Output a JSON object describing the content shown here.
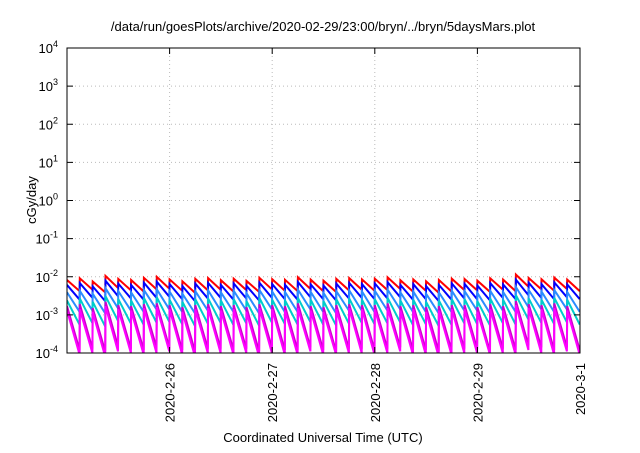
{
  "chart_data": {
    "type": "line",
    "title": "/data/run/goesPlots/archive/2020-02-29/23:00/bryn/../bryn/5daysMars.plot",
    "xlabel": "Coordinated Universal Time (UTC)",
    "ylabel": "cGy/day",
    "yscale": "log",
    "ylim": [
      0.0001,
      10000
    ],
    "xlim": [
      "2020-02-25T00:00",
      "2020-03-01T00:00"
    ],
    "grid": true,
    "y_ticks": [
      {
        "base": "10",
        "exp": "-4",
        "value": 0.0001
      },
      {
        "base": "10",
        "exp": "-3",
        "value": 0.001
      },
      {
        "base": "10",
        "exp": "-2",
        "value": 0.01
      },
      {
        "base": "10",
        "exp": "-1",
        "value": 0.1
      },
      {
        "base": "10",
        "exp": "0",
        "value": 1
      },
      {
        "base": "10",
        "exp": "1",
        "value": 10
      },
      {
        "base": "10",
        "exp": "2",
        "value": 100
      },
      {
        "base": "10",
        "exp": "3",
        "value": 1000
      },
      {
        "base": "10",
        "exp": "4",
        "value": 10000
      }
    ],
    "x_ticks": [
      {
        "label": "2020-2-26",
        "value": "2020-02-26T00:00"
      },
      {
        "label": "2020-2-27",
        "value": "2020-02-27T00:00"
      },
      {
        "label": "2020-2-28",
        "value": "2020-02-28T00:00"
      },
      {
        "label": "2020-2-29",
        "value": "2020-02-29T00:00"
      },
      {
        "label": "2020-3-1",
        "value": "2020-03-01T00:00"
      }
    ],
    "sawtooth_period_hours": 3,
    "series": [
      {
        "color": "#ff0000",
        "peaks": [
          0.0082,
          0.0091,
          0.0075,
          0.0105,
          0.0088,
          0.0082,
          0.0094,
          0.0099,
          0.0085,
          0.0076,
          0.0088,
          0.0092,
          0.0081,
          0.0089,
          0.0078,
          0.0094,
          0.0086,
          0.0083,
          0.0097,
          0.0084,
          0.0079,
          0.0088,
          0.0092,
          0.0085,
          0.0089,
          0.0096,
          0.0081,
          0.0085,
          0.0076,
          0.0082,
          0.0089,
          0.0087,
          0.0079,
          0.0091,
          0.0084,
          0.0114,
          0.0093,
          0.0086,
          0.0095,
          0.0084
        ],
        "troughs": [
          0.0042,
          0.0046,
          0.0039,
          0.0051,
          0.0044,
          0.0041,
          0.0047,
          0.0049,
          0.0043,
          0.0038,
          0.0044,
          0.0046,
          0.0041,
          0.0045,
          0.004,
          0.0047,
          0.0043,
          0.0042,
          0.0048,
          0.0042,
          0.004,
          0.0044,
          0.0046,
          0.0043,
          0.0045,
          0.0048,
          0.0041,
          0.0043,
          0.0038,
          0.0041,
          0.0045,
          0.0044,
          0.004,
          0.0046,
          0.0042,
          0.0055,
          0.0047,
          0.0043,
          0.0048,
          0.0042
        ]
      },
      {
        "color": "#0000ff",
        "peaks": [
          0.0061,
          0.0068,
          0.0056,
          0.0079,
          0.0066,
          0.0061,
          0.007,
          0.0074,
          0.0064,
          0.0057,
          0.0066,
          0.0069,
          0.0061,
          0.0067,
          0.0058,
          0.007,
          0.0064,
          0.0062,
          0.0073,
          0.0063,
          0.0059,
          0.0066,
          0.0069,
          0.0064,
          0.0067,
          0.0072,
          0.0061,
          0.0064,
          0.0057,
          0.0061,
          0.0067,
          0.0065,
          0.0059,
          0.0068,
          0.0063,
          0.0084,
          0.007,
          0.0064,
          0.0071,
          0.0063
        ],
        "troughs": [
          0.0025,
          0.0028,
          0.0023,
          0.0031,
          0.0027,
          0.0025,
          0.0028,
          0.003,
          0.0026,
          0.0023,
          0.0027,
          0.0028,
          0.0025,
          0.0027,
          0.0024,
          0.0028,
          0.0026,
          0.0025,
          0.0029,
          0.0026,
          0.0024,
          0.0027,
          0.0028,
          0.0026,
          0.0027,
          0.0029,
          0.0025,
          0.0026,
          0.0023,
          0.0025,
          0.0027,
          0.0026,
          0.0024,
          0.0028,
          0.0026,
          0.0033,
          0.0028,
          0.0026,
          0.0029,
          0.0026
        ]
      },
      {
        "color": "#2b8cff",
        "peaks": [
          0.0039,
          0.0043,
          0.0036,
          0.005,
          0.0042,
          0.0039,
          0.0045,
          0.0047,
          0.0041,
          0.0036,
          0.0042,
          0.0044,
          0.0039,
          0.0043,
          0.0037,
          0.0045,
          0.0041,
          0.004,
          0.0046,
          0.004,
          0.0038,
          0.0042,
          0.0044,
          0.0041,
          0.0043,
          0.0046,
          0.0039,
          0.0041,
          0.0036,
          0.0039,
          0.0043,
          0.0042,
          0.0038,
          0.0043,
          0.004,
          0.0054,
          0.0045,
          0.0041,
          0.0045,
          0.004
        ],
        "troughs": [
          0.0012,
          0.0013,
          0.0011,
          0.0015,
          0.0013,
          0.0012,
          0.0014,
          0.0014,
          0.0012,
          0.0011,
          0.0013,
          0.0013,
          0.0012,
          0.0013,
          0.0011,
          0.0014,
          0.0012,
          0.0012,
          0.0014,
          0.0012,
          0.0011,
          0.0013,
          0.0013,
          0.0012,
          0.0013,
          0.0014,
          0.0012,
          0.0012,
          0.0011,
          0.0012,
          0.0013,
          0.0013,
          0.0011,
          0.0013,
          0.0012,
          0.0016,
          0.0014,
          0.0012,
          0.0014,
          0.0012
        ]
      },
      {
        "color": "#00cccc",
        "peaks": [
          0.0024,
          0.0027,
          0.0022,
          0.0031,
          0.0026,
          0.0024,
          0.0028,
          0.0029,
          0.0025,
          0.0022,
          0.0026,
          0.0027,
          0.0024,
          0.0026,
          0.0023,
          0.0028,
          0.0025,
          0.0024,
          0.0028,
          0.0025,
          0.0023,
          0.0026,
          0.0027,
          0.0025,
          0.0026,
          0.0028,
          0.0024,
          0.0025,
          0.0022,
          0.0024,
          0.0026,
          0.0026,
          0.0023,
          0.0027,
          0.0025,
          0.0033,
          0.0027,
          0.0025,
          0.0028,
          0.0025
        ],
        "troughs": [
          0.00055,
          0.00061,
          0.0005,
          0.0007,
          0.00059,
          0.00055,
          0.00063,
          0.00066,
          0.00057,
          0.00051,
          0.00059,
          0.00062,
          0.00054,
          0.0006,
          0.00052,
          0.00063,
          0.00058,
          0.00056,
          0.00065,
          0.00056,
          0.00053,
          0.00059,
          0.00062,
          0.00057,
          0.0006,
          0.00064,
          0.00054,
          0.00057,
          0.00051,
          0.00055,
          0.0006,
          0.00058,
          0.00053,
          0.00061,
          0.00056,
          0.00076,
          0.00062,
          0.00058,
          0.00064,
          0.00056
        ]
      },
      {
        "color": "#cc00cc",
        "peaks": [
          0.0017,
          0.0019,
          0.0015,
          0.0022,
          0.0018,
          0.0017,
          0.0019,
          0.002,
          0.0018,
          0.0016,
          0.0018,
          0.0019,
          0.0017,
          0.0018,
          0.0016,
          0.0019,
          0.0018,
          0.0017,
          0.002,
          0.0017,
          0.0016,
          0.0018,
          0.0019,
          0.0018,
          0.0018,
          0.002,
          0.0017,
          0.0018,
          0.0016,
          0.0017,
          0.0018,
          0.0018,
          0.0016,
          0.0019,
          0.0017,
          0.0023,
          0.0019,
          0.0018,
          0.002,
          0.0017
        ],
        "troughs": [
          0.00012,
          0.00013,
          0.00011,
          0.00015,
          0.00013,
          0.00012,
          0.00014,
          0.00014,
          0.00012,
          0.00011,
          0.00013,
          0.00013,
          0.00012,
          0.00013,
          0.00011,
          0.00014,
          0.00012,
          0.00012,
          0.00014,
          0.00012,
          0.00011,
          0.00013,
          0.00013,
          0.00012,
          0.00013,
          0.00014,
          0.00012,
          0.00012,
          0.00011,
          0.00012,
          0.00013,
          0.00013,
          0.00011,
          0.00013,
          0.00012,
          0.00016,
          0.00014,
          0.00012,
          0.00014,
          0.00012
        ]
      },
      {
        "color": "#ff00ff",
        "peaks": [
          0.0013,
          0.0014,
          0.0012,
          0.0017,
          0.0014,
          0.0013,
          0.0015,
          0.0016,
          0.0014,
          0.0012,
          0.0014,
          0.0015,
          0.0013,
          0.0014,
          0.0012,
          0.0015,
          0.0014,
          0.0013,
          0.0015,
          0.0013,
          0.0012,
          0.0014,
          0.0015,
          0.0014,
          0.0014,
          0.0015,
          0.0013,
          0.0014,
          0.0012,
          0.0013,
          0.0014,
          0.0014,
          0.0012,
          0.0014,
          0.0013,
          0.0018,
          0.0015,
          0.0014,
          0.0015,
          0.0013
        ],
        "troughs": [
          9e-05,
          0.0001,
          8e-05,
          0.00011,
          0.0001,
          9e-05,
          0.0001,
          0.00011,
          9e-05,
          8e-05,
          0.0001,
          0.0001,
          9e-05,
          0.0001,
          8e-05,
          0.0001,
          9e-05,
          9e-05,
          0.00011,
          9e-05,
          9e-05,
          0.0001,
          0.0001,
          9e-05,
          0.0001,
          0.00011,
          9e-05,
          9e-05,
          8e-05,
          9e-05,
          0.0001,
          0.0001,
          9e-05,
          0.0001,
          9e-05,
          0.00012,
          0.0001,
          9e-05,
          0.00011,
          9e-05
        ]
      }
    ]
  }
}
